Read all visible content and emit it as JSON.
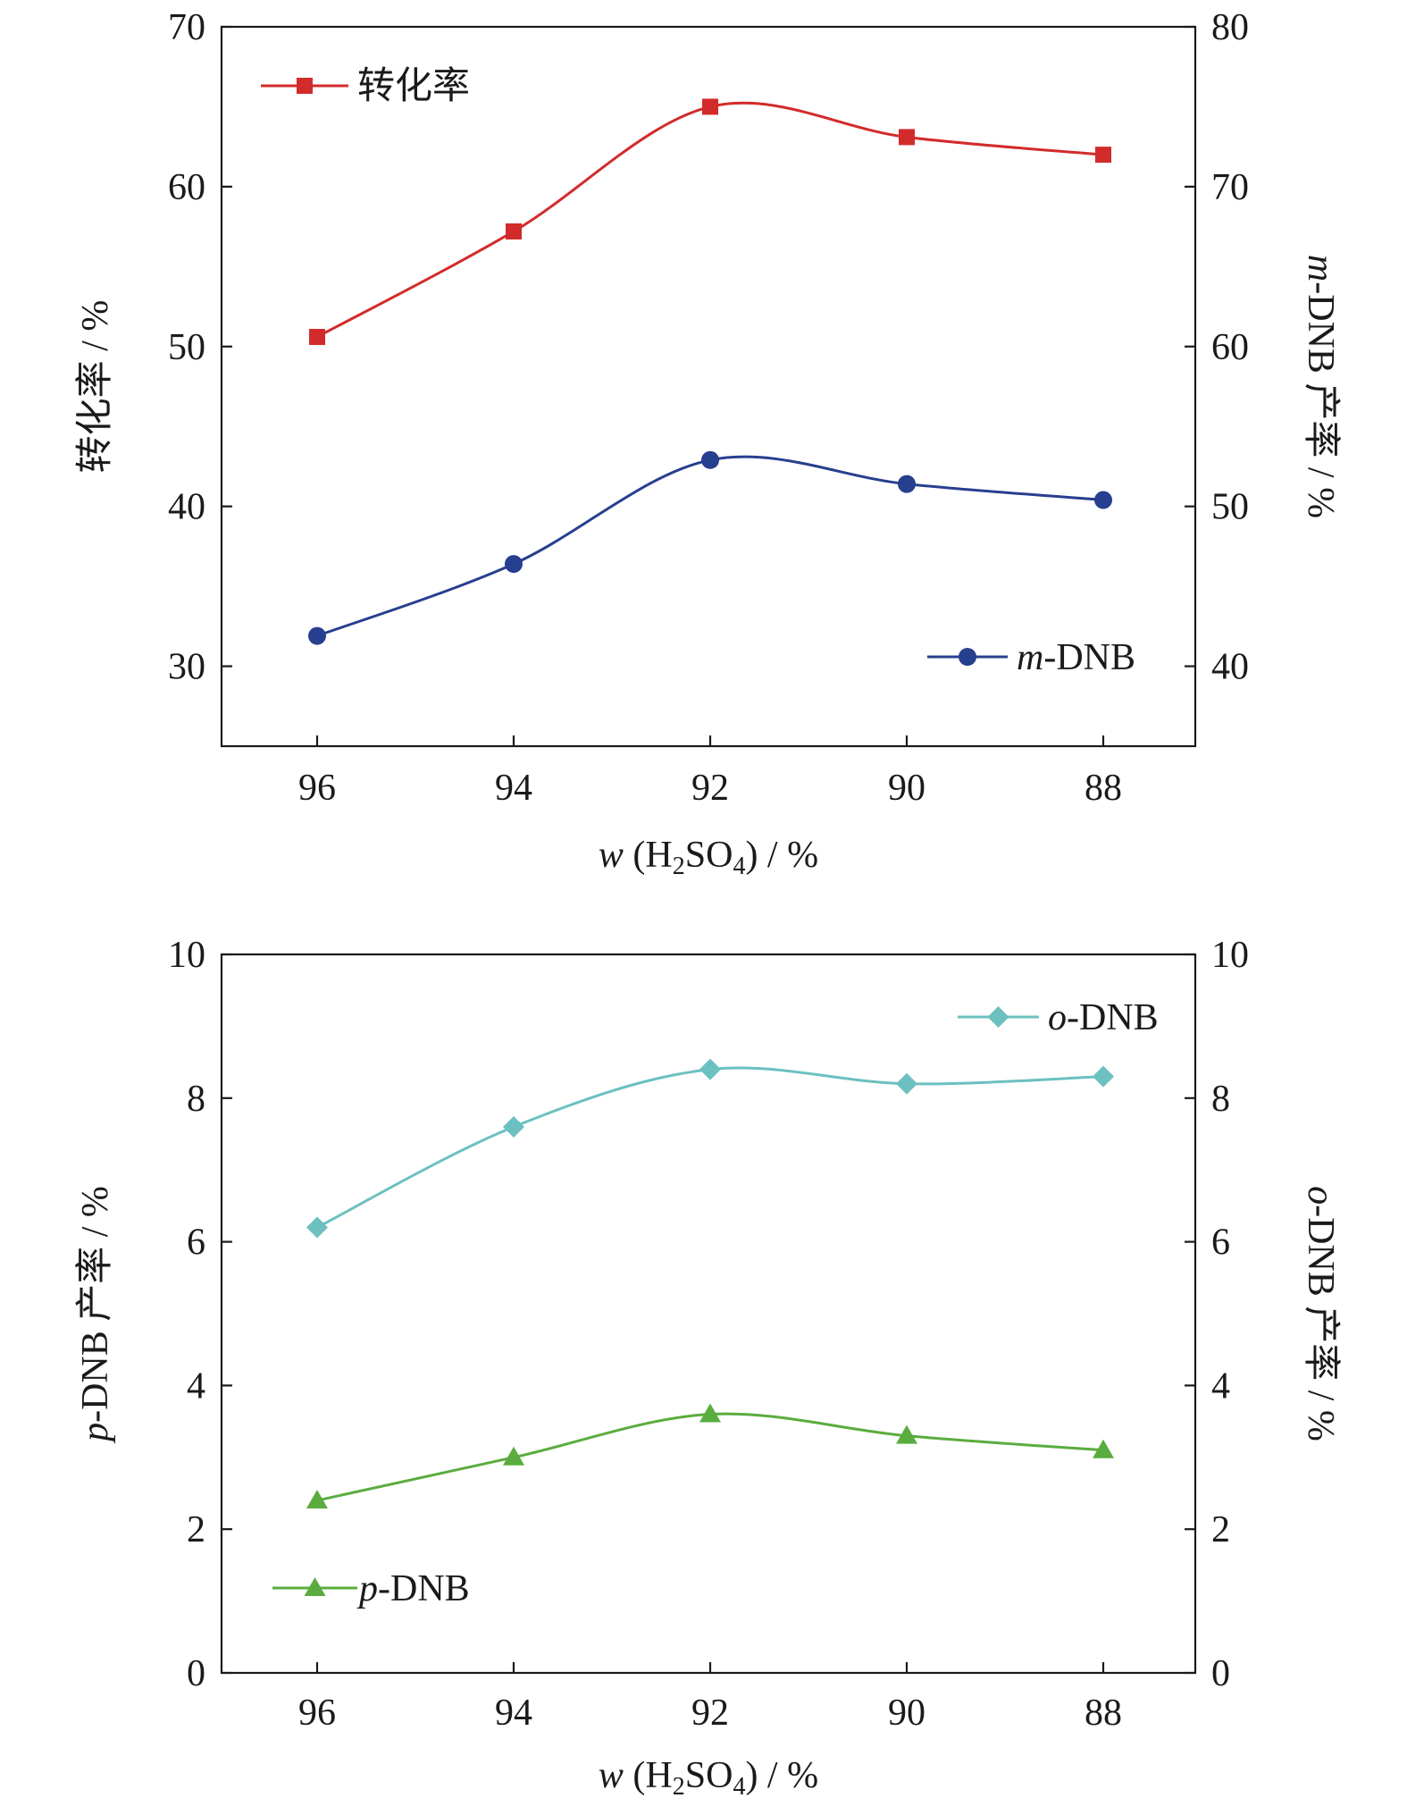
{
  "chart_data": [
    {
      "type": "line",
      "x": [
        "96",
        "94",
        "92",
        "90",
        "88"
      ],
      "xlabel": {
        "var": "w",
        "text_open": " (H",
        "sub1": "2",
        "text_mid": "SO",
        "sub2": "4",
        "text_close": ") / %"
      },
      "ylabel_left": {
        "italic": "",
        "text": "转化率 / %"
      },
      "ylabel_right": {
        "italic": "m",
        "text": "-DNB 产率 / %"
      },
      "ylim_left": [
        25,
        70
      ],
      "ylim_right": [
        35,
        80
      ],
      "yticks_left": [
        30,
        40,
        50,
        60,
        70
      ],
      "yticks_right": [
        40,
        50,
        60,
        70,
        80
      ],
      "grid": false,
      "series": [
        {
          "name": "转化率",
          "name_italic": "",
          "axis": "left",
          "marker": "square",
          "color": "#d22b2b",
          "values": [
            50.6,
            57.2,
            65.0,
            63.1,
            62.0
          ],
          "legend": "top-left"
        },
        {
          "name": "-DNB",
          "name_italic": "m",
          "axis": "right",
          "marker": "circle",
          "color": "#263f8e",
          "values": [
            41.9,
            46.4,
            52.9,
            51.4,
            50.4
          ],
          "legend": "bottom-right"
        }
      ]
    },
    {
      "type": "line",
      "x": [
        "96",
        "94",
        "92",
        "90",
        "88"
      ],
      "xlabel": {
        "var": "w",
        "text_open": " (H",
        "sub1": "2",
        "text_mid": "SO",
        "sub2": "4",
        "text_close": ") / %"
      },
      "ylabel_left": {
        "italic": "p",
        "text": "-DNB 产率 / %"
      },
      "ylabel_right": {
        "italic": "o",
        "text": "-DNB 产率 / %"
      },
      "ylim_left": [
        0,
        10
      ],
      "ylim_right": [
        0,
        10
      ],
      "yticks_left": [
        0,
        2,
        4,
        6,
        8,
        10
      ],
      "yticks_right": [
        0,
        2,
        4,
        6,
        8,
        10
      ],
      "grid": false,
      "series": [
        {
          "name": "-DNB",
          "name_italic": "o",
          "axis": "right",
          "marker": "diamond",
          "color": "#6cc0c0",
          "values": [
            6.2,
            7.6,
            8.4,
            8.2,
            8.3
          ],
          "legend": "top-right"
        },
        {
          "name": "-DNB",
          "name_italic": "p",
          "axis": "left",
          "marker": "triangle",
          "color": "#5aac3e",
          "values": [
            2.4,
            3.0,
            3.6,
            3.3,
            3.1
          ],
          "legend": "bottom-left"
        }
      ]
    }
  ]
}
